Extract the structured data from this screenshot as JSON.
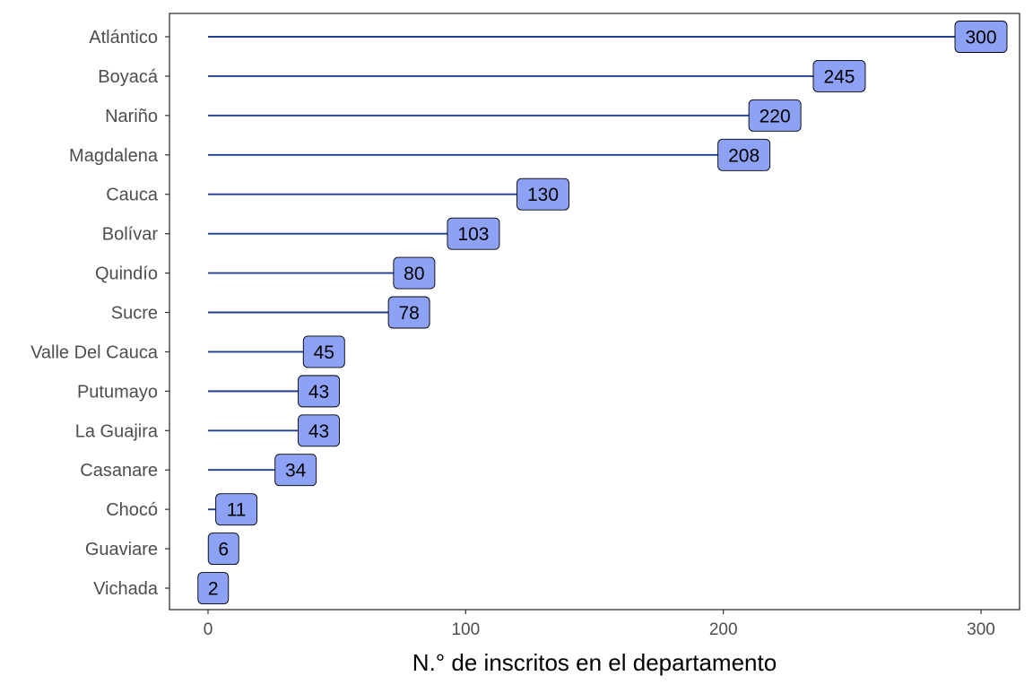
{
  "chart_data": {
    "type": "bar",
    "orientation": "horizontal",
    "style": "lollipop-with-value-labels",
    "title": "",
    "xlabel": "N.° de inscritos en el departamento",
    "ylabel": "",
    "categories": [
      "Atlántico",
      "Boyacá",
      "Nariño",
      "Magdalena",
      "Cauca",
      "Bolívar",
      "Quindío",
      "Sucre",
      "Valle Del Cauca",
      "Putumayo",
      "La Guajira",
      "Casanare",
      "Chocó",
      "Guaviare",
      "Vichada"
    ],
    "values": [
      300,
      245,
      220,
      208,
      130,
      103,
      80,
      78,
      45,
      43,
      43,
      34,
      11,
      6,
      2
    ],
    "xlim": [
      -15,
      315
    ],
    "xticks": [
      0,
      100,
      200,
      300
    ],
    "grid": false,
    "legend": "none",
    "colors": {
      "line": "#1f3f8f",
      "label_fill": "#8ea2f5",
      "label_border": "#000000",
      "panel_border": "#333333"
    }
  }
}
